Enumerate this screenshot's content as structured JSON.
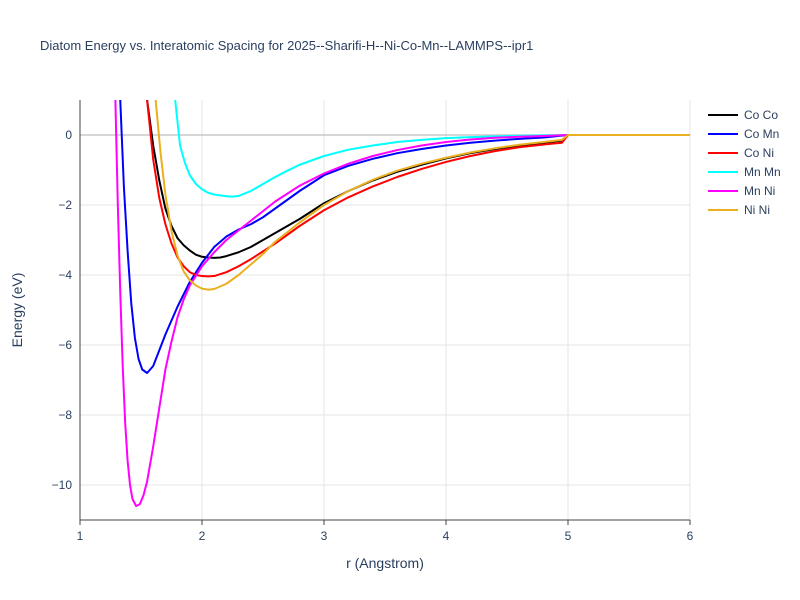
{
  "chart_data": {
    "type": "line",
    "title": "Diatom Energy vs. Interatomic Spacing for 2025--Sharifi-H--Ni-Co-Mn--LAMMPS--ipr1",
    "xlabel": "r (Angstrom)",
    "ylabel": "Energy (eV)",
    "xlim": [
      1,
      6
    ],
    "ylim": [
      -11,
      1
    ],
    "xticks": [
      1,
      2,
      3,
      4,
      5,
      6
    ],
    "yticks": [
      0,
      -2,
      -4,
      -6,
      -8,
      -10
    ],
    "xtick_labels": [
      "1",
      "2",
      "3",
      "4",
      "5",
      "6"
    ],
    "ytick_labels": [
      "0",
      "−2",
      "−4",
      "−6",
      "−8",
      "−10"
    ],
    "grid": true,
    "legend_position": "top-right",
    "series": [
      {
        "name": "Co Co",
        "color": "#000000",
        "points": [
          [
            1.55,
            1.0
          ],
          [
            1.6,
            -0.3
          ],
          [
            1.65,
            -1.3
          ],
          [
            1.7,
            -2.1
          ],
          [
            1.75,
            -2.6
          ],
          [
            1.8,
            -2.95
          ],
          [
            1.85,
            -3.15
          ],
          [
            1.9,
            -3.3
          ],
          [
            1.95,
            -3.42
          ],
          [
            2.0,
            -3.48
          ],
          [
            2.05,
            -3.5
          ],
          [
            2.1,
            -3.51
          ],
          [
            2.15,
            -3.5
          ],
          [
            2.2,
            -3.46
          ],
          [
            2.3,
            -3.35
          ],
          [
            2.4,
            -3.2
          ],
          [
            2.5,
            -3.0
          ],
          [
            2.6,
            -2.8
          ],
          [
            2.8,
            -2.4
          ],
          [
            3.0,
            -1.95
          ],
          [
            3.2,
            -1.6
          ],
          [
            3.4,
            -1.3
          ],
          [
            3.6,
            -1.05
          ],
          [
            3.8,
            -0.85
          ],
          [
            4.0,
            -0.67
          ],
          [
            4.2,
            -0.52
          ],
          [
            4.4,
            -0.4
          ],
          [
            4.6,
            -0.3
          ],
          [
            4.8,
            -0.22
          ],
          [
            4.95,
            -0.16
          ],
          [
            5.0,
            0.0
          ],
          [
            6.0,
            0.0
          ]
        ]
      },
      {
        "name": "Co Mn",
        "color": "#0000ff",
        "points": [
          [
            1.33,
            1.0
          ],
          [
            1.36,
            -1.5
          ],
          [
            1.39,
            -3.3
          ],
          [
            1.42,
            -4.8
          ],
          [
            1.45,
            -5.8
          ],
          [
            1.48,
            -6.4
          ],
          [
            1.51,
            -6.7
          ],
          [
            1.55,
            -6.8
          ],
          [
            1.6,
            -6.6
          ],
          [
            1.65,
            -6.15
          ],
          [
            1.7,
            -5.7
          ],
          [
            1.8,
            -4.9
          ],
          [
            1.9,
            -4.2
          ],
          [
            2.0,
            -3.65
          ],
          [
            2.1,
            -3.2
          ],
          [
            2.2,
            -2.9
          ],
          [
            2.3,
            -2.7
          ],
          [
            2.4,
            -2.55
          ],
          [
            2.5,
            -2.35
          ],
          [
            2.6,
            -2.1
          ],
          [
            2.8,
            -1.6
          ],
          [
            3.0,
            -1.15
          ],
          [
            3.2,
            -0.88
          ],
          [
            3.4,
            -0.68
          ],
          [
            3.6,
            -0.52
          ],
          [
            3.8,
            -0.4
          ],
          [
            4.0,
            -0.3
          ],
          [
            4.2,
            -0.22
          ],
          [
            4.4,
            -0.16
          ],
          [
            4.6,
            -0.11
          ],
          [
            4.8,
            -0.07
          ],
          [
            5.0,
            0.0
          ],
          [
            6.0,
            0.0
          ]
        ]
      },
      {
        "name": "Co Ni",
        "color": "#ff0000",
        "points": [
          [
            1.55,
            1.0
          ],
          [
            1.6,
            -0.7
          ],
          [
            1.65,
            -1.8
          ],
          [
            1.7,
            -2.55
          ],
          [
            1.75,
            -3.1
          ],
          [
            1.8,
            -3.5
          ],
          [
            1.85,
            -3.75
          ],
          [
            1.9,
            -3.92
          ],
          [
            1.95,
            -4.0
          ],
          [
            2.0,
            -4.03
          ],
          [
            2.05,
            -4.04
          ],
          [
            2.1,
            -4.03
          ],
          [
            2.2,
            -3.92
          ],
          [
            2.3,
            -3.75
          ],
          [
            2.4,
            -3.55
          ],
          [
            2.6,
            -3.1
          ],
          [
            2.8,
            -2.6
          ],
          [
            3.0,
            -2.15
          ],
          [
            3.2,
            -1.78
          ],
          [
            3.4,
            -1.47
          ],
          [
            3.6,
            -1.2
          ],
          [
            3.8,
            -0.97
          ],
          [
            4.0,
            -0.77
          ],
          [
            4.2,
            -0.6
          ],
          [
            4.4,
            -0.46
          ],
          [
            4.6,
            -0.35
          ],
          [
            4.8,
            -0.27
          ],
          [
            4.95,
            -0.22
          ],
          [
            5.0,
            0.0
          ],
          [
            6.0,
            0.0
          ]
        ]
      },
      {
        "name": "Mn Mn",
        "color": "#00ffff",
        "points": [
          [
            1.78,
            1.0
          ],
          [
            1.82,
            -0.3
          ],
          [
            1.86,
            -0.8
          ],
          [
            1.9,
            -1.15
          ],
          [
            1.95,
            -1.4
          ],
          [
            2.0,
            -1.55
          ],
          [
            2.05,
            -1.65
          ],
          [
            2.1,
            -1.7
          ],
          [
            2.2,
            -1.75
          ],
          [
            2.25,
            -1.76
          ],
          [
            2.3,
            -1.74
          ],
          [
            2.4,
            -1.6
          ],
          [
            2.5,
            -1.4
          ],
          [
            2.6,
            -1.2
          ],
          [
            2.7,
            -1.02
          ],
          [
            2.8,
            -0.85
          ],
          [
            3.0,
            -0.6
          ],
          [
            3.2,
            -0.42
          ],
          [
            3.4,
            -0.3
          ],
          [
            3.6,
            -0.2
          ],
          [
            3.8,
            -0.14
          ],
          [
            4.0,
            -0.09
          ],
          [
            4.2,
            -0.06
          ],
          [
            4.4,
            -0.04
          ],
          [
            4.6,
            -0.02
          ],
          [
            4.8,
            -0.01
          ],
          [
            5.0,
            0.0
          ],
          [
            6.0,
            0.0
          ]
        ]
      },
      {
        "name": "Mn Ni",
        "color": "#ff00ff",
        "points": [
          [
            1.29,
            1.0
          ],
          [
            1.31,
            -2.0
          ],
          [
            1.33,
            -4.5
          ],
          [
            1.35,
            -6.6
          ],
          [
            1.37,
            -8.2
          ],
          [
            1.39,
            -9.3
          ],
          [
            1.41,
            -10.0
          ],
          [
            1.43,
            -10.4
          ],
          [
            1.46,
            -10.6
          ],
          [
            1.49,
            -10.55
          ],
          [
            1.52,
            -10.3
          ],
          [
            1.55,
            -9.9
          ],
          [
            1.6,
            -8.9
          ],
          [
            1.65,
            -7.8
          ],
          [
            1.7,
            -6.7
          ],
          [
            1.75,
            -5.9
          ],
          [
            1.8,
            -5.2
          ],
          [
            1.85,
            -4.7
          ],
          [
            1.9,
            -4.3
          ],
          [
            2.0,
            -3.75
          ],
          [
            2.1,
            -3.35
          ],
          [
            2.2,
            -3.0
          ],
          [
            2.4,
            -2.45
          ],
          [
            2.6,
            -1.9
          ],
          [
            2.8,
            -1.45
          ],
          [
            3.0,
            -1.1
          ],
          [
            3.2,
            -0.82
          ],
          [
            3.4,
            -0.6
          ],
          [
            3.6,
            -0.43
          ],
          [
            3.8,
            -0.3
          ],
          [
            4.0,
            -0.2
          ],
          [
            4.2,
            -0.13
          ],
          [
            4.4,
            -0.08
          ],
          [
            4.6,
            -0.05
          ],
          [
            4.8,
            -0.03
          ],
          [
            5.0,
            0.0
          ],
          [
            6.0,
            0.0
          ]
        ]
      },
      {
        "name": "Ni Ni",
        "color": "#eab020",
        "points": [
          [
            1.62,
            1.0
          ],
          [
            1.66,
            -0.5
          ],
          [
            1.7,
            -1.7
          ],
          [
            1.75,
            -2.75
          ],
          [
            1.8,
            -3.45
          ],
          [
            1.85,
            -3.9
          ],
          [
            1.9,
            -4.15
          ],
          [
            1.95,
            -4.3
          ],
          [
            2.0,
            -4.39
          ],
          [
            2.05,
            -4.42
          ],
          [
            2.1,
            -4.4
          ],
          [
            2.2,
            -4.25
          ],
          [
            2.3,
            -4.0
          ],
          [
            2.4,
            -3.7
          ],
          [
            2.5,
            -3.4
          ],
          [
            2.6,
            -3.05
          ],
          [
            2.8,
            -2.5
          ],
          [
            3.0,
            -2.0
          ],
          [
            3.2,
            -1.6
          ],
          [
            3.4,
            -1.28
          ],
          [
            3.6,
            -1.02
          ],
          [
            3.8,
            -0.82
          ],
          [
            4.0,
            -0.65
          ],
          [
            4.2,
            -0.5
          ],
          [
            4.4,
            -0.38
          ],
          [
            4.6,
            -0.28
          ],
          [
            4.8,
            -0.2
          ],
          [
            4.95,
            -0.14
          ],
          [
            5.0,
            0.0
          ],
          [
            6.0,
            0.0
          ]
        ]
      }
    ]
  }
}
